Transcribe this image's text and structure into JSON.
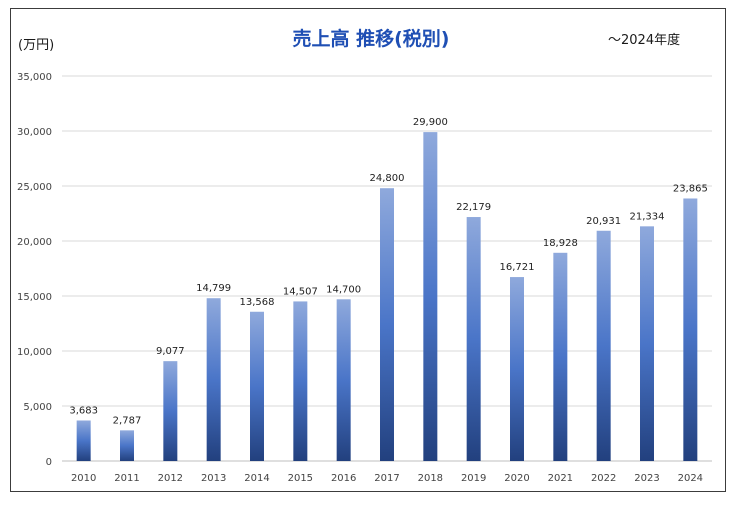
{
  "chart_data": {
    "type": "bar",
    "title": "売上高 推移(税別)",
    "unit_label": "(万円)",
    "period_note": "～2024年度",
    "categories": [
      "2010",
      "2011",
      "2012",
      "2013",
      "2014",
      "2015",
      "2016",
      "2017",
      "2018",
      "2019",
      "2020",
      "2021",
      "2022",
      "2023",
      "2024"
    ],
    "values": [
      3683,
      2787,
      9077,
      14799,
      13568,
      14507,
      14700,
      24800,
      29900,
      22179,
      16721,
      18928,
      20931,
      21334,
      23865
    ],
    "value_labels": [
      "3,683",
      "2,787",
      "9,077",
      "14,799",
      "13,568",
      "14,507",
      "14,700",
      "24,800",
      "29,900",
      "22,179",
      "16,721",
      "18,928",
      "20,931",
      "21,334",
      "23,865"
    ],
    "y_ticks": [
      "0",
      "5,000",
      "10,000",
      "15,000",
      "20,000",
      "25,000",
      "30,000",
      "35,000"
    ],
    "ylim": [
      0,
      35000
    ],
    "grid": true,
    "colors": {
      "bar_top": "#8fa9dc",
      "bar_mid": "#4a75c8",
      "bar_bottom": "#22407e",
      "title": "#1f4fb4"
    }
  }
}
